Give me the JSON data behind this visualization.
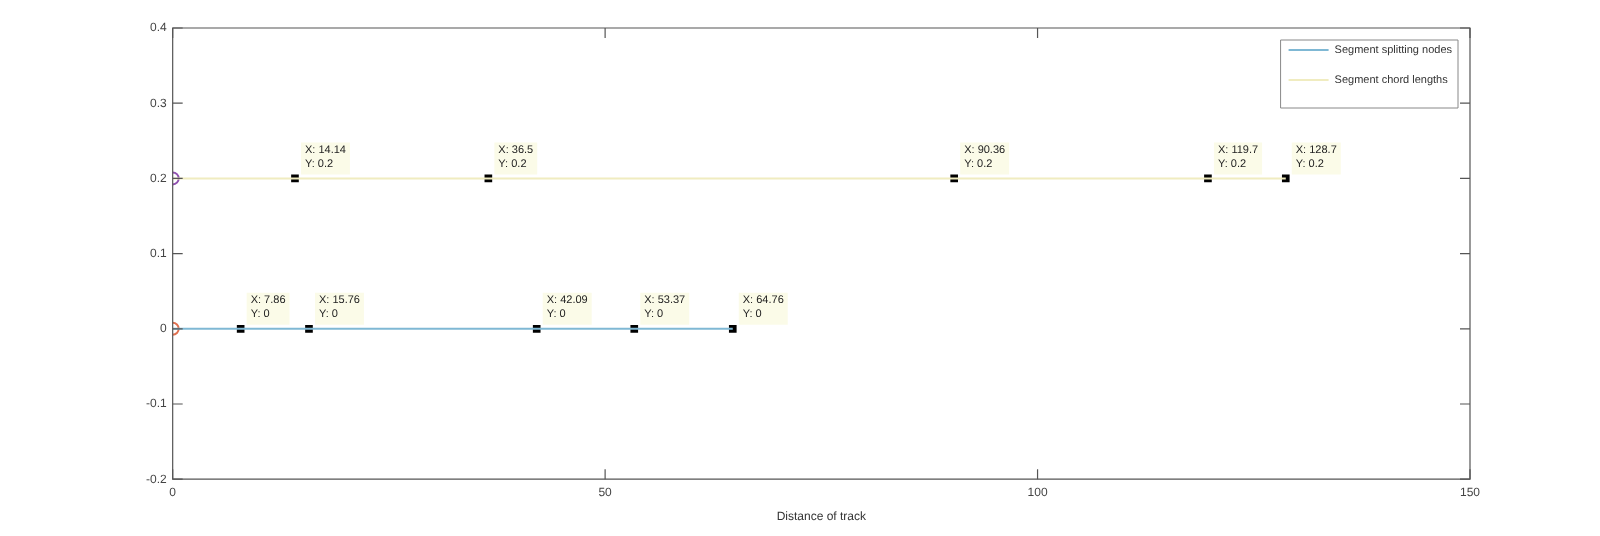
{
  "chart_data": {
    "type": "line",
    "xlabel": "Distance of track",
    "series": [
      {
        "name": "Segment splitting nodes",
        "color": "#7fb8d4",
        "x": [
          0,
          64.76
        ],
        "values": [
          0,
          0
        ]
      },
      {
        "name": "Segment chord lengths",
        "color": "#f0ecc0",
        "x": [
          0,
          128.7
        ],
        "values": [
          0.2,
          0.2
        ]
      },
      {
        "type": "scatter",
        "color": "#e07050",
        "x": [
          0
        ],
        "values": [
          0
        ],
        "marker": "circle"
      },
      {
        "type": "scatter",
        "color": "#9050b0",
        "x": [
          0
        ],
        "values": [
          0.2
        ],
        "marker": "circle"
      },
      {
        "type": "scatter",
        "color": "#000000",
        "x": [
          7.86,
          15.76,
          42.09,
          53.37,
          64.76,
          14.14,
          36.5,
          90.36,
          119.7,
          128.7
        ],
        "values": [
          0,
          0,
          0,
          0,
          0,
          0.2,
          0.2,
          0.2,
          0.2,
          0.2
        ],
        "marker": "square"
      }
    ],
    "xlim": [
      0,
      150
    ],
    "xticks": [
      0,
      50,
      100,
      150
    ],
    "ylim": [
      -0.2,
      0.4
    ],
    "yticks": [
      -0.2,
      -0.1,
      0,
      0.1,
      0.2,
      0.3,
      0.4
    ],
    "legend": "top right",
    "marker": "none",
    "line_style": "solid",
    "annotations": [
      {
        "text": "X: 7.86\nY: 0",
        "x": 7.86,
        "y": 0
      },
      {
        "text": "X: 15.76\nY: 0",
        "x": 15.76,
        "y": 0
      },
      {
        "text": "X: 42.09\nY: 0",
        "x": 42.09,
        "y": 0
      },
      {
        "text": "X: 53.37\nY: 0",
        "x": 53.37,
        "y": 0
      },
      {
        "text": "X: 64.76\nY: 0",
        "x": 64.76,
        "y": 0
      },
      {
        "text": "X: 14.14\nY: 0.2",
        "x": 14.14,
        "y": 0.2
      },
      {
        "text": "X: 36.5\nY: 0.2",
        "x": 36.5,
        "y": 0.2
      },
      {
        "text": "X: 90.36\nY: 0.2",
        "x": 90.36,
        "y": 0.2
      },
      {
        "text": "X: 119.7\nY: 0.2",
        "x": 119.7,
        "y": 0.2
      },
      {
        "text": "X: 128.7\nY: 0.2",
        "x": 128.7,
        "y": 0.2
      }
    ]
  }
}
